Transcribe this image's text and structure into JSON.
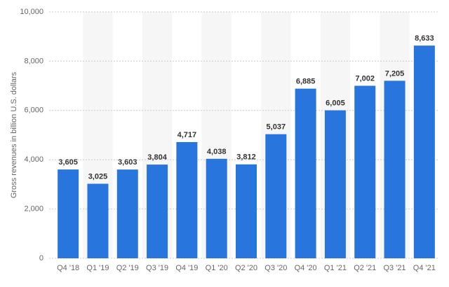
{
  "chart_data": {
    "type": "bar",
    "y_label": "Gross revenues in billion U.S. dollars",
    "categories": [
      "Q4 '18",
      "Q1 '19",
      "Q2 '19",
      "Q3 '19",
      "Q4 '19",
      "Q1 '20",
      "Q2 '20",
      "Q3 '20",
      "Q4 '20",
      "Q1 '21",
      "Q2 '21",
      "Q3 '21",
      "Q4 '21"
    ],
    "values": [
      3605,
      3025,
      3603,
      3804,
      4717,
      4038,
      3812,
      5037,
      6885,
      6005,
      7002,
      7205,
      8633
    ],
    "value_labels": [
      "3,605",
      "3,025",
      "3,603",
      "3,804",
      "4,717",
      "4,038",
      "3,812",
      "5,037",
      "6,885",
      "6,005",
      "7,002",
      "7,205",
      "8,633"
    ],
    "color": "#2876dd",
    "ylim": [
      0,
      10000
    ],
    "yticks": [
      0,
      {
        "value": 2000,
        "label": "2,000"
      },
      {
        "value": 4000,
        "label": "4,000"
      },
      {
        "value": 6000,
        "label": "6,000"
      },
      {
        "value": 8000,
        "label": "8,000"
      },
      {
        "value": 10000,
        "label": "10,000"
      }
    ],
    "grid": true
  }
}
